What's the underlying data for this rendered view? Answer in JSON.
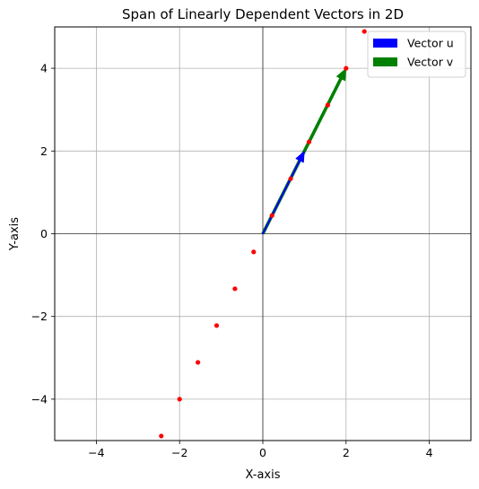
{
  "chart_data": {
    "type": "scatter",
    "title": "Span of Linearly Dependent Vectors in 2D",
    "xlabel": "X-axis",
    "ylabel": "Y-axis",
    "xlim": [
      -5,
      5
    ],
    "ylim": [
      -5,
      5
    ],
    "x_ticks": [
      -4,
      -2,
      0,
      2,
      4
    ],
    "y_ticks": [
      -4,
      -2,
      0,
      2,
      4
    ],
    "x_tick_labels": [
      "−4",
      "−2",
      "0",
      "2",
      "4"
    ],
    "y_tick_labels": [
      "−4",
      "−2",
      "0",
      "2",
      "4"
    ],
    "grid": true,
    "legend_position": "top-right",
    "vectors": [
      {
        "name": "Vector u",
        "x0": 0,
        "y0": 0,
        "x": 1,
        "y": 2,
        "color": "#0000ff"
      },
      {
        "name": "Vector v",
        "x0": 0,
        "y0": 0,
        "x": 2,
        "y": 4,
        "color": "#008000"
      }
    ],
    "span_points": {
      "color": "#ff0000",
      "x": [
        -2.44,
        -2.0,
        -1.56,
        -1.11,
        -0.67,
        -0.22,
        0.22,
        0.67,
        1.11,
        1.56,
        2.0,
        2.44
      ],
      "y": [
        -4.89,
        -4.0,
        -3.11,
        -2.22,
        -1.33,
        -0.44,
        0.44,
        1.33,
        2.22,
        3.11,
        4.0,
        4.89
      ]
    }
  }
}
